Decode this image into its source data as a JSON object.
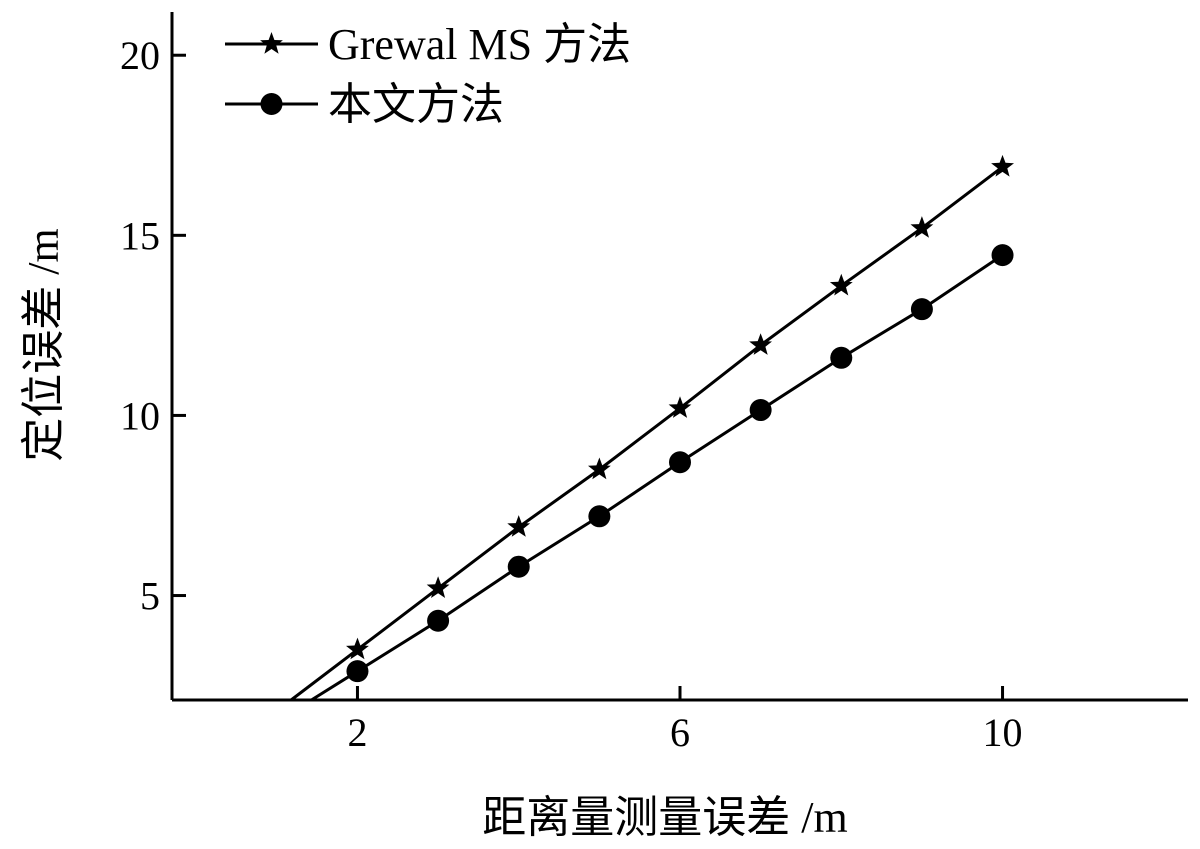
{
  "chart_data": {
    "type": "line",
    "xlabel": "距离量测量误差 /m",
    "ylabel": "定位误差 /m",
    "xlim": [
      -0.3,
      12.3
    ],
    "ylim": [
      2.1,
      21.2
    ],
    "xticks": [
      2,
      6,
      10
    ],
    "yticks": [
      5,
      10,
      15,
      20
    ],
    "legend_position": "top-left",
    "grid": false,
    "series": [
      {
        "name": "Grewal MS 方法",
        "marker": "star",
        "color": "#000000",
        "x": [
          2,
          3,
          4,
          5,
          6,
          7,
          8,
          9,
          10
        ],
        "y": [
          3.5,
          5.2,
          6.9,
          8.5,
          10.2,
          11.95,
          13.6,
          15.2,
          16.9
        ]
      },
      {
        "name": "本文方法",
        "marker": "circle",
        "color": "#000000",
        "x": [
          2,
          3,
          4,
          5,
          6,
          7,
          8,
          9,
          10
        ],
        "y": [
          2.9,
          4.3,
          5.8,
          7.2,
          8.7,
          10.15,
          11.6,
          12.95,
          14.45
        ]
      }
    ]
  }
}
